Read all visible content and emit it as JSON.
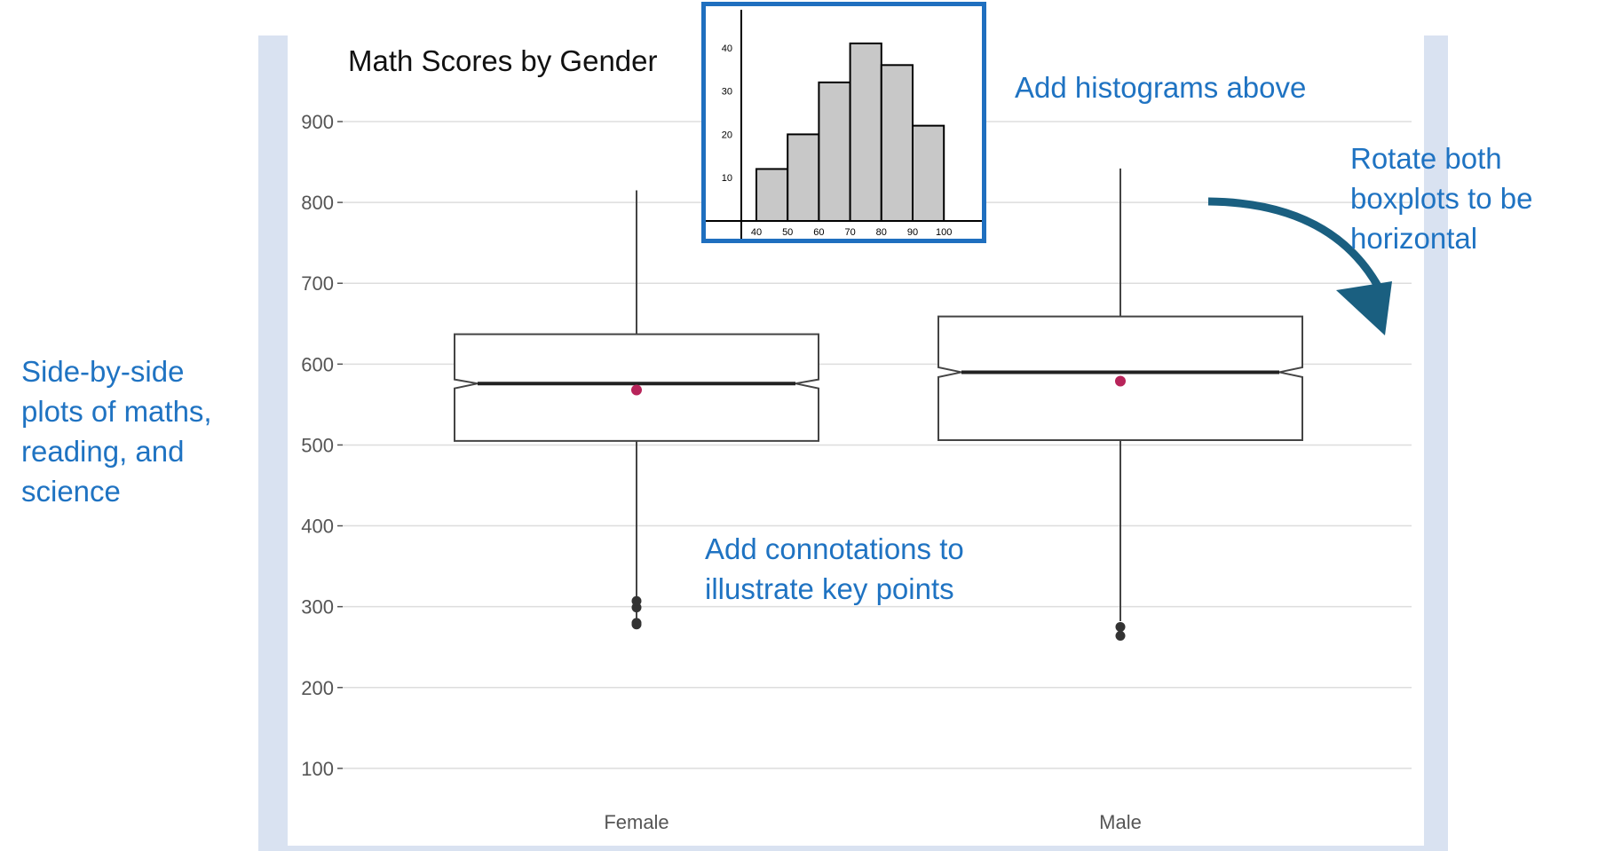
{
  "colors": {
    "frame": "#d9e2f1",
    "annotation_text": "#1f73c2",
    "arrow": "#1a5f80",
    "mean_point": "#b8245a",
    "box_stroke": "#444444",
    "gridline": "#dddddd",
    "histogram_bar": "#c8c8c8",
    "histogram_border": "#1f6fbf"
  },
  "annotations": {
    "left": "Side-by-side\nplots of maths,\nreading, and\nscience",
    "histograms": "Add histograms above",
    "rotate": "Rotate both\nboxplots to be\nhorizontal",
    "connotations": "Add connotations to\nillustrate key points"
  },
  "icons": {
    "rotate_arrow": "curved-arrow-down-right-icon"
  },
  "chart_data": [
    {
      "type": "boxplot",
      "title": "Math Scores by Gender",
      "xlabel": "",
      "ylabel": "",
      "categories": [
        "Female",
        "Male"
      ],
      "ylim": [
        80,
        980
      ],
      "yticks": [
        100,
        200,
        300,
        400,
        500,
        600,
        700,
        800,
        900
      ],
      "grid": true,
      "notched": true,
      "boxes": [
        {
          "category": "Female",
          "min": 285,
          "q1": 505,
          "median": 576,
          "q3": 637,
          "max": 815,
          "mean": 568,
          "notch": [
            570,
            581
          ],
          "outliers": [
            278,
            280,
            299,
            307
          ]
        },
        {
          "category": "Male",
          "min": 282,
          "q1": 506,
          "median": 590,
          "q3": 659,
          "max": 842,
          "mean": 579,
          "notch": [
            584,
            596
          ],
          "outliers": [
            264,
            275
          ]
        }
      ]
    },
    {
      "type": "bar",
      "title": "",
      "xlabel": "",
      "ylabel": "",
      "x_ticks": [
        40,
        50,
        60,
        70,
        80,
        90,
        100
      ],
      "y_ticks": [
        10,
        20,
        30,
        40
      ],
      "bins": [
        {
          "start": 40,
          "end": 50,
          "count": 12
        },
        {
          "start": 50,
          "end": 60,
          "count": 20
        },
        {
          "start": 60,
          "end": 70,
          "count": 32
        },
        {
          "start": 70,
          "end": 80,
          "count": 41
        },
        {
          "start": 80,
          "end": 90,
          "count": 36
        },
        {
          "start": 90,
          "end": 100,
          "count": 22
        }
      ]
    }
  ]
}
